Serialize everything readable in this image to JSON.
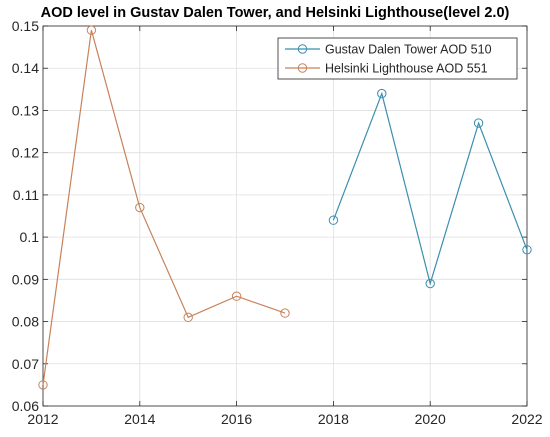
{
  "chart_data": {
    "type": "line",
    "title": "AOD level in Gustav Dalen Tower, and Helsinki Lighthouse(level 2.0)",
    "xlabel": "",
    "ylabel": "",
    "xlim": [
      2012,
      2022
    ],
    "ylim": [
      0.06,
      0.15
    ],
    "xticks": [
      2012,
      2014,
      2016,
      2018,
      2020,
      2022
    ],
    "yticks": [
      0.06,
      0.07,
      0.08,
      0.09,
      0.1,
      0.11,
      0.12,
      0.13,
      0.14,
      0.15
    ],
    "xtick_labels": [
      "2012",
      "2014",
      "2016",
      "2018",
      "2020",
      "2022"
    ],
    "ytick_labels": [
      "0.06",
      "0.07",
      "0.08",
      "0.09",
      "0.1",
      "0.11",
      "0.12",
      "0.13",
      "0.14",
      "0.15"
    ],
    "grid": true,
    "legend_position": "top-right",
    "series": [
      {
        "name": "Gustav Dalen Tower AOD 510",
        "color": "#3b8eb0",
        "marker": "circle",
        "x": [
          2018,
          2019,
          2020,
          2021,
          2022
        ],
        "y": [
          0.104,
          0.134,
          0.089,
          0.127,
          0.097
        ]
      },
      {
        "name": "Helsinki Lighthouse AOD 551",
        "color": "#c8825a",
        "marker": "circle",
        "x": [
          2012,
          2013,
          2014,
          2015,
          2016,
          2017
        ],
        "y": [
          0.065,
          0.149,
          0.107,
          0.081,
          0.086,
          0.082
        ]
      }
    ]
  }
}
